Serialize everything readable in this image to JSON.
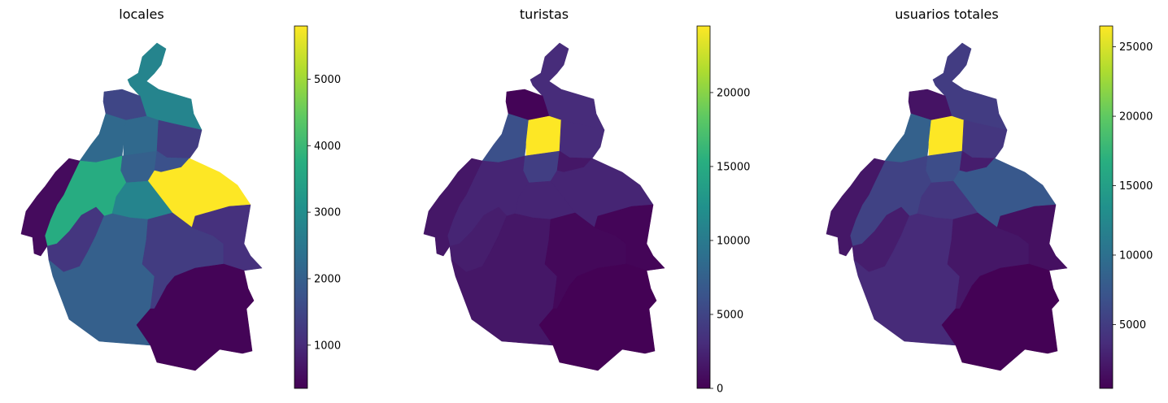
{
  "map_panels": [
    {
      "title": "locales",
      "colorbar": {
        "min": 350,
        "max": 5800,
        "ticks": [
          {
            "label": "1000",
            "value": 1000
          },
          {
            "label": "2000",
            "value": 2000
          },
          {
            "label": "3000",
            "value": 3000
          },
          {
            "label": "4000",
            "value": 4000
          },
          {
            "label": "5000",
            "value": 5000
          }
        ]
      },
      "regions": {
        "gustavo_a_madero": 2800,
        "azcapotzalco": 1500,
        "miguel_hidalgo": 2200,
        "cuauhtemoc": 2200,
        "venustiano_carranza": 1300,
        "benito_juarez": 2000,
        "iztacalco": 1700,
        "iztapalapa": 5800,
        "alvaro_obregon": 3700,
        "cuajimalpa": 500,
        "magdalena_contreras": 1200,
        "coyoacan": 2800,
        "tlalpan": 2000,
        "xochimilco": 1300,
        "tlahuac": 1100,
        "milpa_alta": 400
      }
    },
    {
      "title": "turistas",
      "colorbar": {
        "min": 0,
        "max": 24500,
        "ticks": [
          {
            "label": "0",
            "value": 0
          },
          {
            "label": "5000",
            "value": 5000
          },
          {
            "label": "10000",
            "value": 10000
          },
          {
            "label": "15000",
            "value": 15000
          },
          {
            "label": "20000",
            "value": 20000
          }
        ]
      },
      "regions": {
        "gustavo_a_madero": 3000,
        "azcapotzalco": 200,
        "miguel_hidalgo": 6000,
        "cuauhtemoc": 24500,
        "venustiano_carranza": 3000,
        "benito_juarez": 4500,
        "iztacalco": 1500,
        "iztapalapa": 2500,
        "alvaro_obregon": 2500,
        "cuajimalpa": 1500,
        "magdalena_contreras": 2000,
        "coyoacan": 2500,
        "tlalpan": 1500,
        "xochimilco": 500,
        "tlahuac": 300,
        "milpa_alta": 100
      }
    },
    {
      "title": "usuarios totales",
      "colorbar": {
        "min": 400,
        "max": 26500,
        "ticks": [
          {
            "label": "5000",
            "value": 5000
          },
          {
            "label": "10000",
            "value": 10000
          },
          {
            "label": "15000",
            "value": 15000
          },
          {
            "label": "20000",
            "value": 20000
          },
          {
            "label": "25000",
            "value": 25000
          }
        ]
      },
      "regions": {
        "gustavo_a_madero": 5000,
        "azcapotzalco": 1700,
        "miguel_hidalgo": 8500,
        "cuauhtemoc": 26500,
        "venustiano_carranza": 4500,
        "benito_juarez": 6500,
        "iztacalco": 2500,
        "iztapalapa": 7500,
        "alvaro_obregon": 5500,
        "cuajimalpa": 2000,
        "magdalena_contreras": 2500,
        "coyoacan": 4500,
        "tlalpan": 3500,
        "xochimilco": 2000,
        "tlahuac": 1500,
        "milpa_alta": 500
      }
    }
  ]
}
